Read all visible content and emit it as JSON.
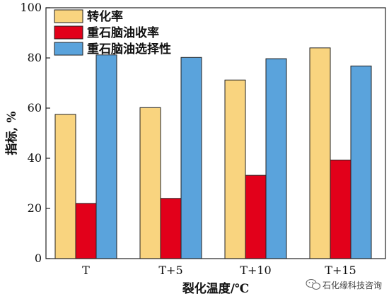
{
  "chart_data": {
    "type": "bar",
    "categories": [
      "T",
      "T+5",
      "T+10",
      "T+15"
    ],
    "series": [
      {
        "name": "转化率",
        "color": "#f9d47f",
        "values": [
          57.5,
          60.2,
          71.2,
          84.0
        ]
      },
      {
        "name": "重石脑油收率",
        "color": "#e2001a",
        "values": [
          22.0,
          24.0,
          33.2,
          39.3
        ]
      },
      {
        "name": "重石脑油选择性",
        "color": "#5aa3dc",
        "values": [
          81.2,
          80.2,
          79.7,
          76.8
        ]
      }
    ],
    "xlabel": "裂化温度/℃",
    "ylabel": "指标, %",
    "ylim": [
      0,
      100
    ],
    "yticks": [
      0,
      20,
      40,
      60,
      80,
      100
    ],
    "legend_position": "top-left",
    "grid": false
  },
  "watermark": {
    "text": "石化缘科技咨询",
    "icon": "wechat-icon"
  }
}
